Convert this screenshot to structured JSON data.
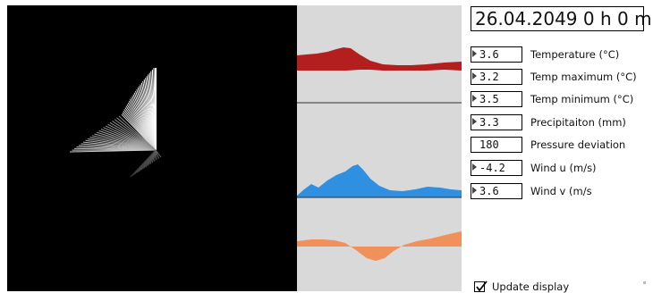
{
  "datetime": "26.04.2049 0 h 0 m",
  "parameters": [
    {
      "value": "3.6",
      "label": "Temperature (°C)",
      "has_marker": true
    },
    {
      "value": "3.2",
      "label": "Temp maximum (°C)",
      "has_marker": true
    },
    {
      "value": "3.5",
      "label": "Temp minimum (°C)",
      "has_marker": true
    },
    {
      "value": "3.3",
      "label": "Precipitaiton (mm)",
      "has_marker": true
    },
    {
      "value": "180",
      "label": "Pressure deviation",
      "has_marker": false
    },
    {
      "value": "-4.2",
      "label": "Wind u (m/s)",
      "has_marker": true
    },
    {
      "value": "3.6",
      "label": "Wind v (m/s",
      "has_marker": true
    }
  ],
  "update_display": {
    "label": "Update display",
    "checked": true
  },
  "colors": {
    "background": "#ffffff",
    "viz_background": "#000000",
    "graph_background": "#d9d9d9",
    "temperature": "#b31f1f",
    "precipitation": "#2f8fe0",
    "wind": "#f0905a"
  }
}
